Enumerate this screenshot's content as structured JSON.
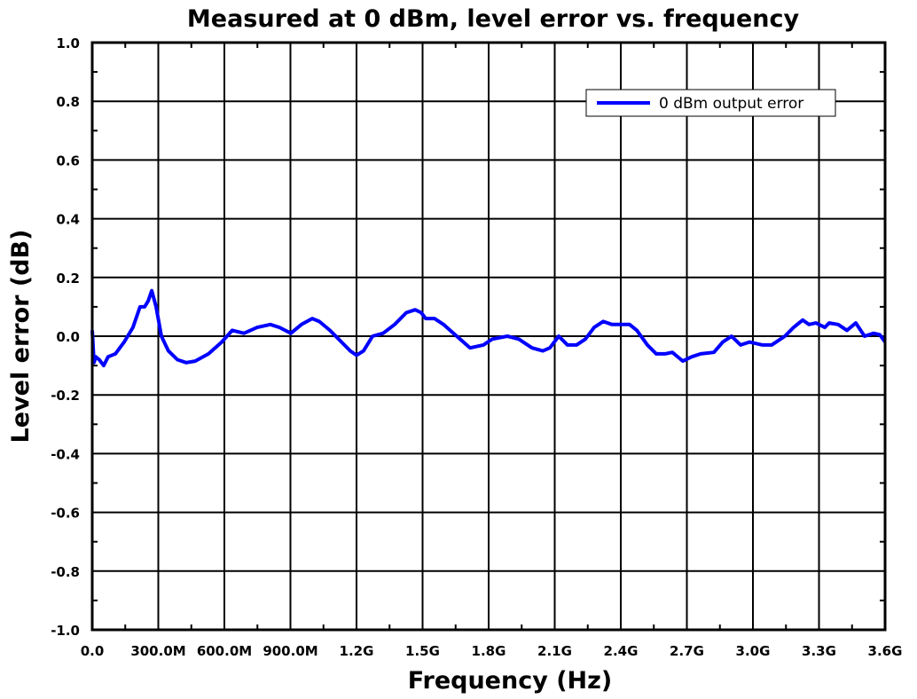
{
  "chart_data": {
    "type": "line",
    "title": "Measured at 0 dBm, level error vs. frequency",
    "xlabel": "Frequency (Hz)",
    "ylabel": "Level error (dB)",
    "xlim": [
      0,
      3600000000
    ],
    "ylim": [
      -1.0,
      1.0
    ],
    "grid": true,
    "legend_position": "top-right",
    "x_ticks": [
      0,
      300000000,
      600000000,
      900000000,
      1200000000,
      1500000000,
      1800000000,
      2100000000,
      2400000000,
      2700000000,
      3000000000,
      3300000000,
      3600000000
    ],
    "x_tick_labels": [
      "0.0",
      "300.0M",
      "600.0M",
      "900.0M",
      "1.2G",
      "1.5G",
      "1.8G",
      "2.1G",
      "2.4G",
      "2.7G",
      "3.0G",
      "3.3G",
      "3.6G"
    ],
    "y_ticks": [
      1.0,
      0.8,
      0.6,
      0.4,
      0.2,
      0.0,
      -0.2,
      -0.4,
      -0.6,
      -0.8,
      -1.0
    ],
    "y_tick_labels": [
      "1.0",
      "0.8",
      "0.6",
      "0.4",
      "0.2",
      "0.0",
      "-0.2",
      "-0.4",
      "-0.6",
      "-0.8",
      "-1.0"
    ],
    "series": [
      {
        "name": "0 dBm output error",
        "color": "#0000ff",
        "x": [
          0,
          8000000,
          16000000,
          32000000,
          52000000,
          72000000,
          105000000,
          145000000,
          185000000,
          217000000,
          238000000,
          254000000,
          270000000,
          290000000,
          314000000,
          346000000,
          387000000,
          427000000,
          467000000,
          528000000,
          588000000,
          636000000,
          689000000,
          749000000,
          809000000,
          850000000,
          902000000,
          950000000,
          999000000,
          1031000000,
          1079000000,
          1132000000,
          1172000000,
          1200000000,
          1232000000,
          1273000000,
          1321000000,
          1373000000,
          1426000000,
          1466000000,
          1494000000,
          1514000000,
          1554000000,
          1595000000,
          1655000000,
          1716000000,
          1776000000,
          1816000000,
          1885000000,
          1937000000,
          1997000000,
          2046000000,
          2078000000,
          2118000000,
          2158000000,
          2199000000,
          2239000000,
          2279000000,
          2320000000,
          2360000000,
          2400000000,
          2440000000,
          2473000000,
          2521000000,
          2561000000,
          2601000000,
          2634000000,
          2682000000,
          2722000000,
          2763000000,
          2823000000,
          2863000000,
          2903000000,
          2944000000,
          2984000000,
          3044000000,
          3085000000,
          3145000000,
          3185000000,
          3226000000,
          3254000000,
          3286000000,
          3326000000,
          3346000000,
          3387000000,
          3427000000,
          3467000000,
          3507000000,
          3548000000,
          3576000000,
          3600000000
        ],
        "y": [
          0.02,
          -0.09,
          -0.07,
          -0.08,
          -0.1,
          -0.07,
          -0.06,
          -0.02,
          0.03,
          0.1,
          0.1,
          0.12,
          0.155,
          0.1,
          0.0,
          -0.05,
          -0.08,
          -0.09,
          -0.085,
          -0.06,
          -0.02,
          0.02,
          0.01,
          0.03,
          0.04,
          0.03,
          0.01,
          0.04,
          0.06,
          0.05,
          0.02,
          -0.02,
          -0.05,
          -0.065,
          -0.05,
          0.0,
          0.01,
          0.04,
          0.08,
          0.09,
          0.08,
          0.06,
          0.06,
          0.04,
          0.0,
          -0.04,
          -0.03,
          -0.01,
          0.0,
          -0.01,
          -0.04,
          -0.05,
          -0.04,
          0.0,
          -0.03,
          -0.03,
          -0.01,
          0.03,
          0.05,
          0.04,
          0.04,
          0.04,
          0.02,
          -0.03,
          -0.06,
          -0.06,
          -0.055,
          -0.085,
          -0.07,
          -0.06,
          -0.055,
          -0.02,
          0.0,
          -0.03,
          -0.02,
          -0.03,
          -0.03,
          0.0,
          0.03,
          0.055,
          0.04,
          0.045,
          0.03,
          0.045,
          0.04,
          0.02,
          0.045,
          0.0,
          0.01,
          0.005,
          -0.02
        ]
      }
    ]
  }
}
